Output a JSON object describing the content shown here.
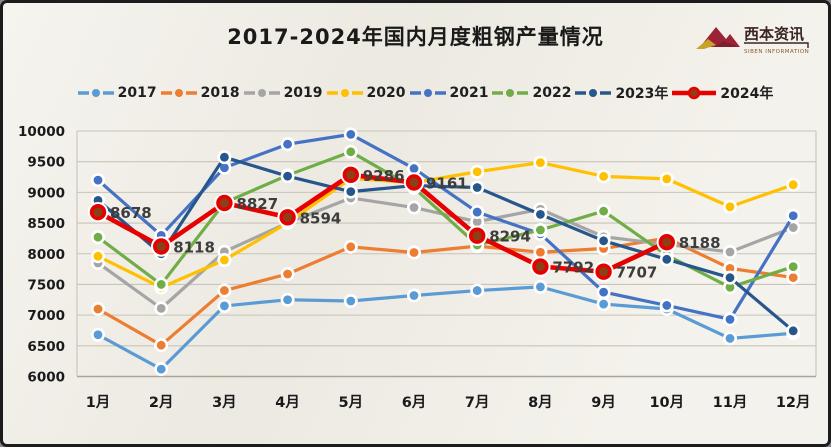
{
  "header": {
    "title": "2017-2024年国内月度粗钢产量情况",
    "logo": {
      "name": "西本资讯",
      "subtitle": "SIBEN INFORMATION"
    }
  },
  "chart_data": {
    "type": "line",
    "title": "2017-2024年国内月度粗钢产量情况",
    "categories": [
      "1月",
      "2月",
      "3月",
      "4月",
      "5月",
      "6月",
      "7月",
      "8月",
      "9月",
      "10月",
      "11月",
      "12月"
    ],
    "xlabel": "",
    "ylabel": "",
    "y_axis": {
      "min": 6000,
      "max": 10000,
      "step": 500,
      "ticks": [
        6000,
        6500,
        7000,
        7500,
        8000,
        8500,
        9000,
        9500,
        10000
      ]
    },
    "grid": "horizontal",
    "legend_position": "top",
    "series": [
      {
        "name": "2017",
        "color": "#5B9BD5",
        "values": [
          6680,
          6120,
          7150,
          7250,
          7230,
          7320,
          7400,
          7460,
          7180,
          7100,
          6620,
          6705
        ]
      },
      {
        "name": "2018",
        "color": "#ED7D31",
        "values": [
          7100,
          6510,
          7400,
          7670,
          8113,
          8020,
          8124,
          8025,
          8085,
          8255,
          7762,
          7612
        ]
      },
      {
        "name": "2019",
        "color": "#A5A5A5",
        "values": [
          7850,
          7110,
          8033,
          8503,
          8909,
          8753,
          8522,
          8725,
          8277,
          8152,
          8029,
          8427
        ]
      },
      {
        "name": "2020",
        "color": "#FFC000",
        "values": [
          7960,
          7450,
          7898,
          8503,
          9227,
          9158,
          9336,
          9485,
          9261,
          9220,
          8766,
          9125
        ]
      },
      {
        "name": "2021",
        "color": "#4472C4",
        "values": [
          9200,
          8300,
          9402,
          9785,
          9945,
          9388,
          8679,
          8324,
          7375,
          7158,
          6931,
          8619
        ]
      },
      {
        "name": "2022",
        "color": "#70AD47",
        "values": [
          8270,
          7500,
          8830,
          9278,
          9661,
          9073,
          8143,
          8387,
          8695,
          7976,
          7454,
          7789
        ]
      },
      {
        "name": "2023年",
        "color": "#26568B",
        "values": [
          8870,
          8000,
          9573,
          9264,
          9012,
          9111,
          9080,
          8641,
          8211,
          7909,
          7610,
          6744
        ]
      },
      {
        "name": "2024年",
        "color": "#E60000",
        "marker_fill": "#8A4117",
        "emphasis": true,
        "show_labels": true,
        "values": [
          8678,
          8118,
          8827,
          8594,
          9286,
          9161,
          8294,
          7792,
          7707,
          8188,
          null,
          null
        ],
        "data_labels": [
          "8678",
          "8118",
          "8827",
          "8594",
          "9286",
          "9161",
          "8294",
          "7792",
          "7707",
          "8188"
        ]
      }
    ]
  },
  "style": {
    "grid_color": "#c8c4b9",
    "axis_color": "#a9a497",
    "tick_color": "#1a1a1a",
    "label_color": "#3d3d3d",
    "logo_red": "#9B2335",
    "logo_gold": "#C9A227",
    "logo_text": "#3a2420"
  }
}
